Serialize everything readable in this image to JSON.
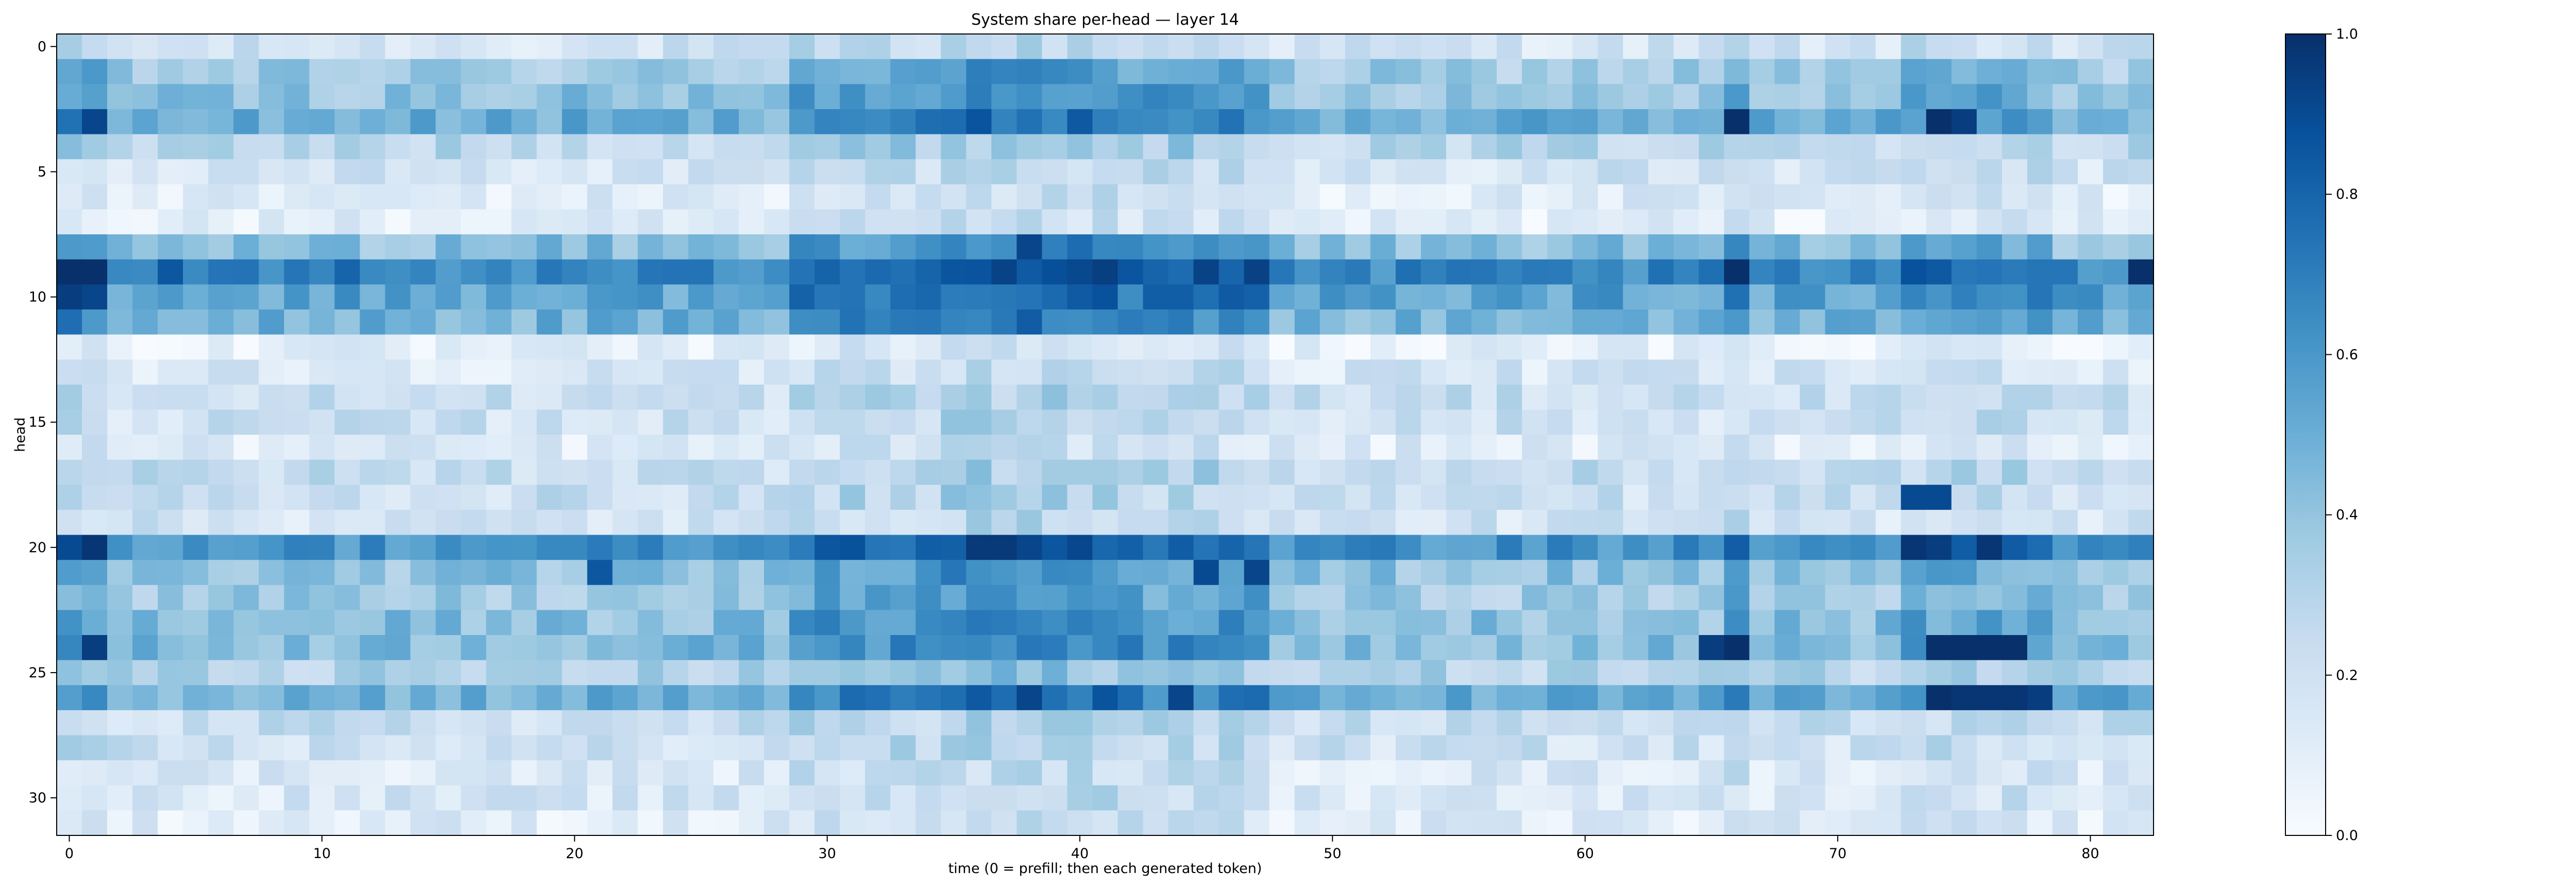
{
  "chart_data": {
    "type": "heatmap",
    "title": "System share per-head — layer 14",
    "xlabel": "time (0 = prefill; then each generated token)",
    "ylabel": "head",
    "x_ticks": [
      0,
      10,
      20,
      30,
      40,
      50,
      60,
      70,
      80
    ],
    "y_ticks": [
      0,
      5,
      10,
      15,
      20,
      25,
      30
    ],
    "xlim": [
      -0.5,
      82.5
    ],
    "ylim": [
      31.5,
      -0.5
    ],
    "n_rows": 32,
    "n_cols": 83,
    "colormap": "Blues",
    "colorbar": {
      "min": 0.0,
      "max": 1.0,
      "ticks": [
        "0.0",
        "0.2",
        "0.4",
        "0.6",
        "0.8",
        "1.0"
      ]
    },
    "colors": {
      "low": "#f7fbff",
      "high": "#08306b"
    },
    "column_bands": [
      {
        "from": 0,
        "to": 1,
        "boost": 0.18
      },
      {
        "from": 29,
        "to": 47,
        "boost": 0.18
      },
      {
        "from": 35,
        "to": 41,
        "boost": 0.08
      },
      {
        "from": 66,
        "to": 66,
        "boost": 0.15
      },
      {
        "from": 73,
        "to": 78,
        "boost": 0.12
      }
    ],
    "head_base_values": [
      0.18,
      0.35,
      0.4,
      0.5,
      0.28,
      0.18,
      0.12,
      0.1,
      0.42,
      0.65,
      0.55,
      0.48,
      0.08,
      0.16,
      0.22,
      0.2,
      0.12,
      0.24,
      0.22,
      0.18,
      0.62,
      0.4,
      0.35,
      0.42,
      0.45,
      0.3,
      0.5,
      0.22,
      0.2,
      0.15,
      0.16,
      0.12
    ],
    "highlight_cells": [
      {
        "head": 9,
        "t": 0,
        "value": 1.0
      },
      {
        "head": 9,
        "t": 1,
        "value": 1.0
      },
      {
        "head": 10,
        "t": 0,
        "value": 0.95
      },
      {
        "head": 10,
        "t": 1,
        "value": 0.92
      },
      {
        "head": 3,
        "t": 1,
        "value": 0.92
      },
      {
        "head": 20,
        "t": 1,
        "value": 0.98
      },
      {
        "head": 20,
        "t": 0,
        "value": 0.9
      },
      {
        "head": 24,
        "t": 1,
        "value": 0.95
      },
      {
        "head": 9,
        "t": 66,
        "value": 1.0
      },
      {
        "head": 24,
        "t": 66,
        "value": 1.0
      },
      {
        "head": 3,
        "t": 66,
        "value": 1.0
      },
      {
        "head": 9,
        "t": 82,
        "value": 1.0
      },
      {
        "head": 24,
        "t": 74,
        "value": 1.0
      },
      {
        "head": 24,
        "t": 75,
        "value": 1.0
      },
      {
        "head": 24,
        "t": 76,
        "value": 1.0
      },
      {
        "head": 24,
        "t": 77,
        "value": 1.0
      },
      {
        "head": 26,
        "t": 74,
        "value": 1.0
      },
      {
        "head": 26,
        "t": 75,
        "value": 0.98
      },
      {
        "head": 26,
        "t": 76,
        "value": 0.98
      },
      {
        "head": 26,
        "t": 77,
        "value": 0.98
      },
      {
        "head": 26,
        "t": 78,
        "value": 0.95
      },
      {
        "head": 3,
        "t": 74,
        "value": 1.0
      },
      {
        "head": 3,
        "t": 75,
        "value": 0.95
      },
      {
        "head": 18,
        "t": 73,
        "value": 0.9
      },
      {
        "head": 18,
        "t": 74,
        "value": 0.9
      },
      {
        "head": 20,
        "t": 73,
        "value": 0.98
      },
      {
        "head": 20,
        "t": 74,
        "value": 0.95
      },
      {
        "head": 20,
        "t": 76,
        "value": 0.98
      },
      {
        "head": 21,
        "t": 47,
        "value": 0.92
      },
      {
        "head": 21,
        "t": 45,
        "value": 0.9
      },
      {
        "head": 26,
        "t": 38,
        "value": 0.92
      },
      {
        "head": 26,
        "t": 44,
        "value": 0.92
      },
      {
        "head": 8,
        "t": 38,
        "value": 0.92
      },
      {
        "head": 20,
        "t": 38,
        "value": 0.92
      },
      {
        "head": 24,
        "t": 65,
        "value": 0.95
      },
      {
        "head": 9,
        "t": 4,
        "value": 0.85
      },
      {
        "head": 9,
        "t": 11,
        "value": 0.8
      },
      {
        "head": 21,
        "t": 21,
        "value": 0.85
      }
    ]
  }
}
